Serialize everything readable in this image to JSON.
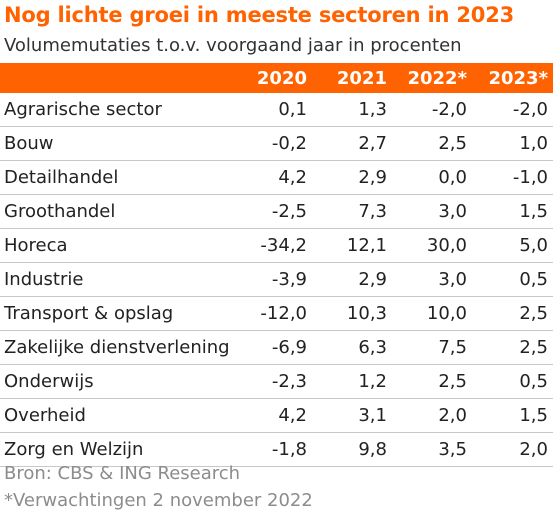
{
  "chart_data": {
    "type": "table",
    "title": "Nog lichte groei in meeste sectoren in 2023",
    "subtitle": "Volumemutaties t.o.v. voorgaand jaar in procenten",
    "columns": [
      "2020",
      "2021",
      "2022*",
      "2023*"
    ],
    "rows": [
      {
        "label": "Agrarische sector",
        "values": [
          "0,1",
          "1,3",
          "-2,0",
          "-2,0"
        ]
      },
      {
        "label": "Bouw",
        "values": [
          "-0,2",
          "2,7",
          "2,5",
          "1,0"
        ]
      },
      {
        "label": "Detailhandel",
        "values": [
          "4,2",
          "2,9",
          "0,0",
          "-1,0"
        ]
      },
      {
        "label": "Groothandel",
        "values": [
          "-2,5",
          "7,3",
          "3,0",
          "1,5"
        ]
      },
      {
        "label": "Horeca",
        "values": [
          "-34,2",
          "12,1",
          "30,0",
          "5,0"
        ]
      },
      {
        "label": "Industrie",
        "values": [
          "-3,9",
          "2,9",
          "3,0",
          "0,5"
        ]
      },
      {
        "label": "Transport & opslag",
        "values": [
          "-12,0",
          "10,3",
          "10,0",
          "2,5"
        ]
      },
      {
        "label": "Zakelijke dienstverlening",
        "values": [
          "-6,9",
          "6,3",
          "7,5",
          "2,5"
        ]
      },
      {
        "label": "Onderwijs",
        "values": [
          "-2,3",
          "1,2",
          "2,5",
          "0,5"
        ]
      },
      {
        "label": "Overheid",
        "values": [
          "4,2",
          "3,1",
          "2,0",
          "1,5"
        ]
      },
      {
        "label": "Zorg en Welzijn",
        "values": [
          "-1,8",
          "9,8",
          "3,5",
          "2,0"
        ]
      }
    ],
    "source": "Bron: CBS & ING Research",
    "note": "*Verwachtingen 2 november 2022"
  },
  "colors": {
    "accent": "#ff6200",
    "header_text": "#ffffff",
    "footnote_text": "#8c8c8c"
  }
}
